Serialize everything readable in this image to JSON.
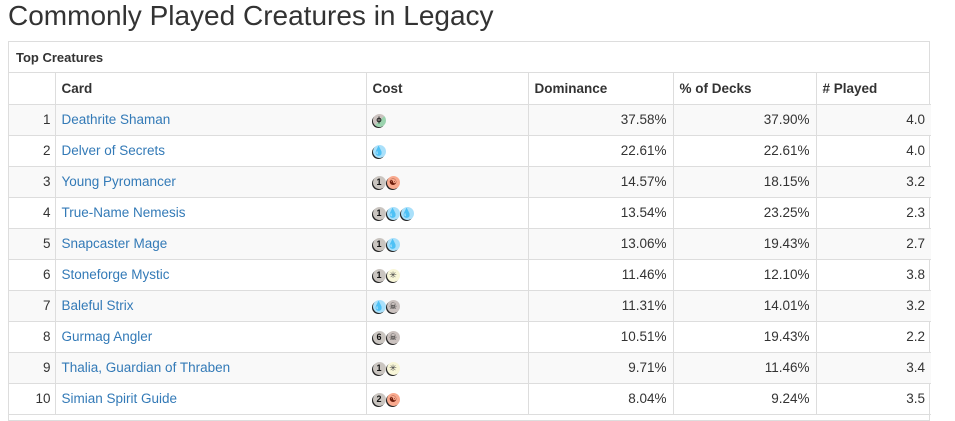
{
  "page_title": "Commonly Played Creatures in Legacy",
  "panel": {
    "heading": "Top Creatures",
    "columns": [
      "",
      "Card",
      "Cost",
      "Dominance",
      "% of Decks",
      "# Played"
    ]
  },
  "mana_glyphs": {
    "generic": "",
    "blue": "💧",
    "red": "☯",
    "white": "✳",
    "black": "☠",
    "hybrid": "ϕ"
  },
  "rows": [
    {
      "rank": "1",
      "card": "Deathrite Shaman",
      "cost": [
        {
          "type": "hybrid"
        }
      ],
      "dominance": "37.58%",
      "pct_decks": "37.90%",
      "played": "4.0"
    },
    {
      "rank": "2",
      "card": "Delver of Secrets",
      "cost": [
        {
          "type": "blue"
        }
      ],
      "dominance": "22.61%",
      "pct_decks": "22.61%",
      "played": "4.0"
    },
    {
      "rank": "3",
      "card": "Young Pyromancer",
      "cost": [
        {
          "type": "generic",
          "label": "1"
        },
        {
          "type": "red"
        }
      ],
      "dominance": "14.57%",
      "pct_decks": "18.15%",
      "played": "3.2"
    },
    {
      "rank": "4",
      "card": "True-Name Nemesis",
      "cost": [
        {
          "type": "generic",
          "label": "1"
        },
        {
          "type": "blue"
        },
        {
          "type": "blue"
        }
      ],
      "dominance": "13.54%",
      "pct_decks": "23.25%",
      "played": "2.3"
    },
    {
      "rank": "5",
      "card": "Snapcaster Mage",
      "cost": [
        {
          "type": "generic",
          "label": "1"
        },
        {
          "type": "blue"
        }
      ],
      "dominance": "13.06%",
      "pct_decks": "19.43%",
      "played": "2.7"
    },
    {
      "rank": "6",
      "card": "Stoneforge Mystic",
      "cost": [
        {
          "type": "generic",
          "label": "1"
        },
        {
          "type": "white"
        }
      ],
      "dominance": "11.46%",
      "pct_decks": "12.10%",
      "played": "3.8"
    },
    {
      "rank": "7",
      "card": "Baleful Strix",
      "cost": [
        {
          "type": "blue"
        },
        {
          "type": "black"
        }
      ],
      "dominance": "11.31%",
      "pct_decks": "14.01%",
      "played": "3.2"
    },
    {
      "rank": "8",
      "card": "Gurmag Angler",
      "cost": [
        {
          "type": "generic",
          "label": "6"
        },
        {
          "type": "black"
        }
      ],
      "dominance": "10.51%",
      "pct_decks": "19.43%",
      "played": "2.2"
    },
    {
      "rank": "9",
      "card": "Thalia, Guardian of Thraben",
      "cost": [
        {
          "type": "generic",
          "label": "1"
        },
        {
          "type": "white"
        }
      ],
      "dominance": "9.71%",
      "pct_decks": "11.46%",
      "played": "3.4"
    },
    {
      "rank": "10",
      "card": "Simian Spirit Guide",
      "cost": [
        {
          "type": "generic",
          "label": "2"
        },
        {
          "type": "red"
        }
      ],
      "dominance": "8.04%",
      "pct_decks": "9.24%",
      "played": "3.5"
    }
  ]
}
